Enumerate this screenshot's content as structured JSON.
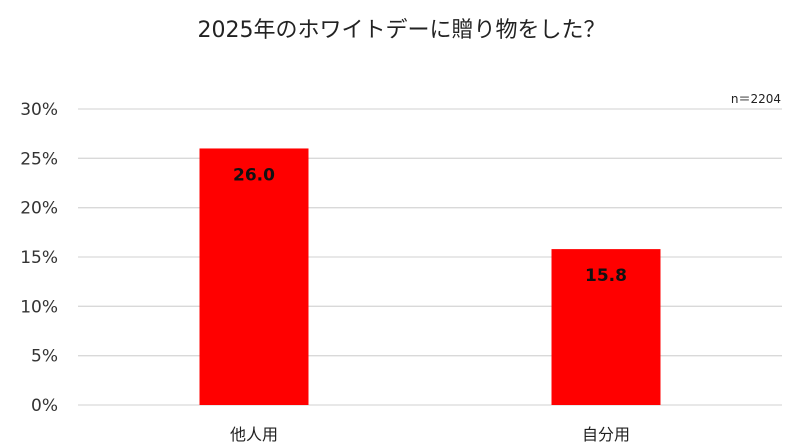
{
  "chart_data": {
    "type": "bar",
    "title": "2025年のホワイトデーに贈り物をした？",
    "annotation": "n＝2204",
    "categories": [
      "他人用",
      "自分用"
    ],
    "values": [
      26.0,
      15.8
    ],
    "data_labels": [
      "26.0",
      "15.8"
    ],
    "ylim": [
      0,
      30
    ],
    "yticks": [
      "0%",
      "5%",
      "10%",
      "15%",
      "20%",
      "25%",
      "30%"
    ],
    "xlabel": "",
    "ylabel": "",
    "grid": true,
    "bar_color": "#ff0000",
    "grid_color": "#d9d9d9"
  }
}
